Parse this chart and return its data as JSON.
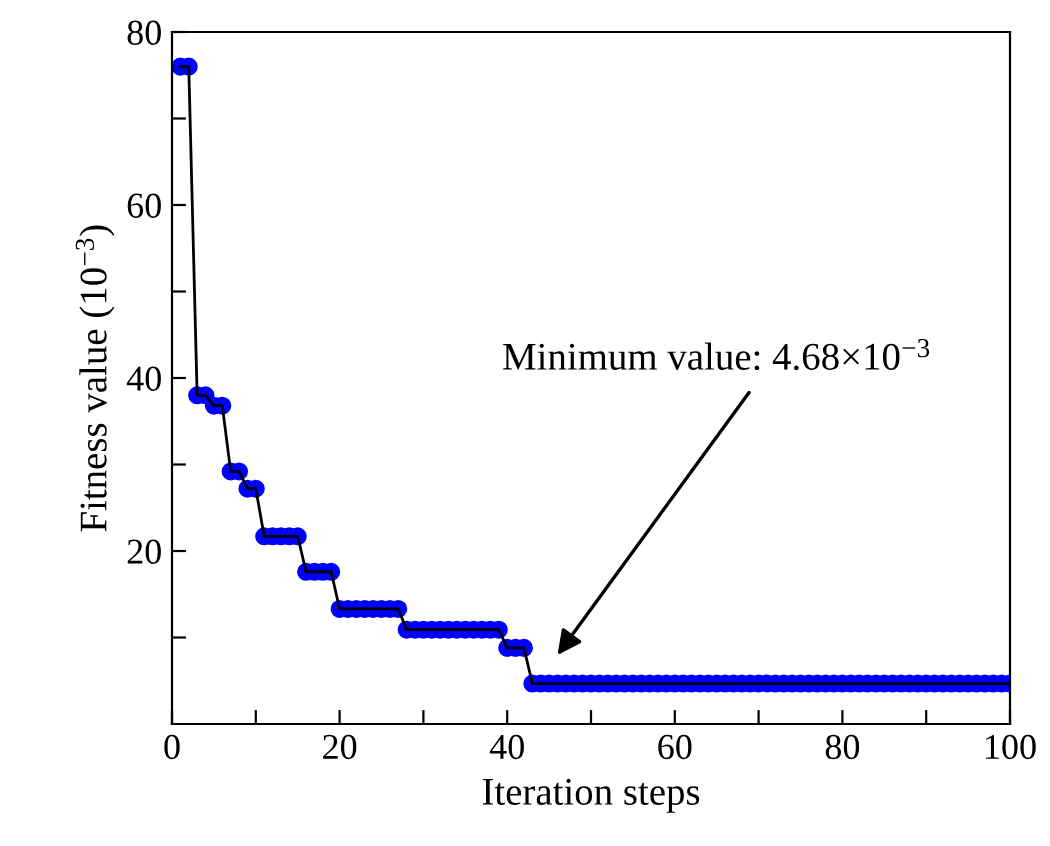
{
  "chart_data": {
    "type": "line",
    "xlabel": "Iteration steps",
    "ylabel": "Fitness value (10$^{−3}$)",
    "x": [
      1,
      2,
      3,
      4,
      5,
      6,
      7,
      8,
      9,
      10,
      11,
      12,
      13,
      14,
      15,
      16,
      17,
      18,
      19,
      20,
      21,
      22,
      23,
      24,
      25,
      26,
      27,
      28,
      29,
      30,
      31,
      32,
      33,
      34,
      35,
      36,
      37,
      38,
      39,
      40,
      41,
      42,
      43,
      44,
      45,
      46,
      47,
      48,
      49,
      50,
      51,
      52,
      53,
      54,
      55,
      56,
      57,
      58,
      59,
      60,
      61,
      62,
      63,
      64,
      65,
      66,
      67,
      68,
      69,
      70,
      71,
      72,
      73,
      74,
      75,
      76,
      77,
      78,
      79,
      80,
      81,
      82,
      83,
      84,
      85,
      86,
      87,
      88,
      89,
      90,
      91,
      92,
      93,
      94,
      95,
      96,
      97,
      98,
      99,
      100
    ],
    "series": [
      {
        "color": "#0000ff",
        "values": [
          76,
          76,
          38,
          38,
          36.8,
          36.8,
          29.2,
          29.2,
          27.2,
          27.2,
          21.7,
          21.7,
          21.7,
          21.7,
          21.7,
          17.6,
          17.6,
          17.6,
          17.6,
          13.3,
          13.3,
          13.3,
          13.3,
          13.3,
          13.3,
          13.3,
          13.3,
          10.9,
          10.9,
          10.9,
          10.9,
          10.9,
          10.9,
          10.9,
          10.9,
          10.9,
          10.9,
          10.9,
          10.9,
          8.8,
          8.8,
          8.8,
          4.68,
          4.68,
          4.68,
          4.68,
          4.68,
          4.68,
          4.68,
          4.68,
          4.68,
          4.68,
          4.68,
          4.68,
          4.68,
          4.68,
          4.68,
          4.68,
          4.68,
          4.68,
          4.68,
          4.68,
          4.68,
          4.68,
          4.68,
          4.68,
          4.68,
          4.68,
          4.68,
          4.68,
          4.68,
          4.68,
          4.68,
          4.68,
          4.68,
          4.68,
          4.68,
          4.68,
          4.68,
          4.68,
          4.68,
          4.68,
          4.68,
          4.68,
          4.68,
          4.68,
          4.68,
          4.68,
          4.68,
          4.68,
          4.68,
          4.68,
          4.68,
          4.68,
          4.68,
          4.68,
          4.68,
          4.68,
          4.68,
          4.68
        ]
      }
    ],
    "xlim": [
      0,
      100
    ],
    "ylim": [
      0,
      80
    ],
    "xticks": [
      0,
      {
        "value": 10,
        "label": null
      },
      20,
      {
        "value": 30,
        "label": null
      },
      40,
      {
        "value": 50,
        "label": null
      },
      60,
      {
        "value": 70,
        "label": null
      },
      80,
      {
        "value": 90,
        "label": null
      },
      100
    ],
    "yticks": [
      {
        "value": 10,
        "label": null
      },
      20,
      {
        "value": 30,
        "label": null
      },
      40,
      {
        "value": 50,
        "label": null
      },
      60,
      {
        "value": 70,
        "label": null
      },
      80
    ],
    "annotations": [
      "Minimum value: 4.68×10$^{−3}$"
    ],
    "marker": "circle",
    "line_style": "solid",
    "grid": false,
    "legend": false
  }
}
